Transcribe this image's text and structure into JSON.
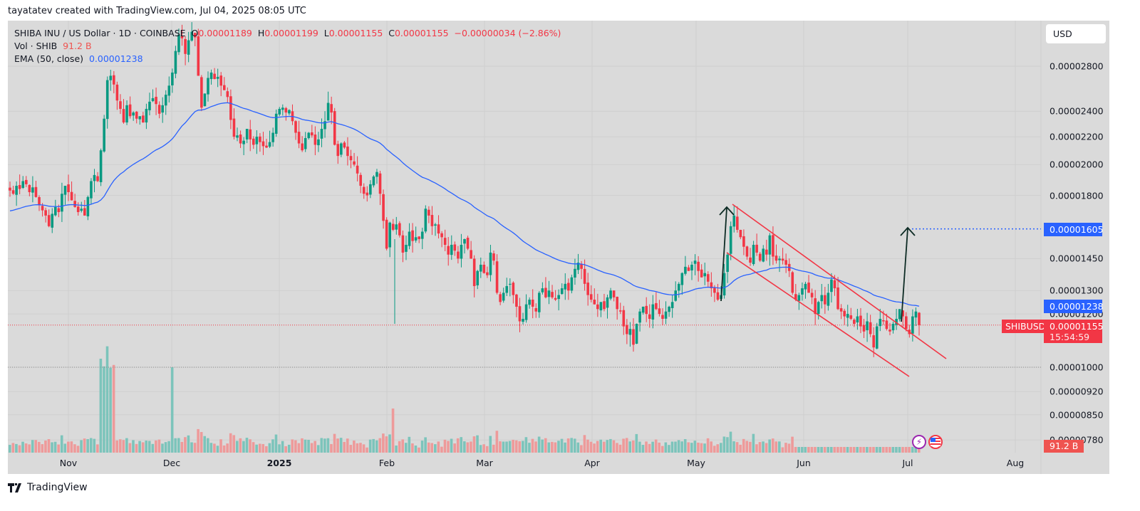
{
  "caption": "tayatatev created with TradingView.com, Jul 04, 2025 08:05 UTC",
  "legend": {
    "symbol": "SHIBA INU / US Dollar · 1D · COINBASE",
    "o_label": "O",
    "o_value": "0.00001189",
    "h_label": "H",
    "h_value": "0.00001199",
    "l_label": "L",
    "l_value": "0.00001155",
    "c_label": "C",
    "c_value": "0.00001155",
    "change": "−0.00000034 (−2.86%)",
    "vol_label": "Vol · SHIB",
    "vol_value": "91.2 B",
    "ema_label": "EMA (50, close)",
    "ema_value": "0.00001238"
  },
  "currency_button": "USD",
  "price_axis": {
    "ticks": [
      "0.00002800",
      "0.00002400",
      "0.00002200",
      "0.00002000",
      "0.00001800",
      "0.00001450",
      "0.00001300",
      "0.00001200",
      "0.00001000",
      "0.00000920",
      "0.00000850",
      "0.00000780"
    ],
    "target_tag": "0.00001605",
    "ema_tag": "0.00001238",
    "symbol_tag": "SHIBUSD",
    "last_price_tag": "0.00001155",
    "countdown": "15:54:59",
    "volume_tag": "91.2 B"
  },
  "time_axis": [
    "Nov",
    "Dec",
    "2025",
    "Feb",
    "Mar",
    "Apr",
    "May",
    "Jun",
    "Jul",
    "Aug"
  ],
  "brand": "TradingView",
  "colors": {
    "up": "#089981",
    "down": "#f23645",
    "ema": "#2962ff",
    "channel": "#f23645",
    "arrow": "#0d2b24",
    "vol_up": "#7cc4bb",
    "vol_down": "#ee9a9a"
  },
  "chart_data": {
    "type": "candlestick",
    "title": "SHIBA INU / US Dollar · 1D · COINBASE",
    "scale": "log",
    "y_unit": "USD (×1e-6)",
    "ylim": [
      7.8,
      30.0
    ],
    "x_start": "2024-10-13",
    "x_end": "2025-07-04",
    "series_ema": "EMA (50, close)",
    "closes": [
      18.3,
      18.1,
      18.6,
      18.4,
      18.9,
      18.7,
      18.2,
      18.5,
      17.9,
      17.4,
      17.1,
      16.8,
      16.2,
      16.9,
      17.3,
      17.0,
      18.1,
      18.6,
      18.2,
      17.7,
      17.3,
      17.0,
      17.2,
      16.8,
      17.9,
      18.9,
      19.3,
      18.9,
      21.0,
      23.4,
      26.7,
      27.1,
      26.3,
      24.9,
      24.2,
      23.1,
      24.5,
      23.6,
      23.9,
      23.4,
      23.6,
      23.1,
      24.2,
      24.8,
      25.1,
      24.6,
      23.8,
      24.5,
      25.4,
      26.2,
      27.4,
      29.5,
      31.2,
      30.8,
      29.2,
      30.6,
      31.5,
      30.9,
      27.1,
      24.3,
      25.5,
      26.9,
      27.4,
      26.8,
      27.0,
      26.2,
      25.8,
      25.2,
      23.3,
      22.0,
      22.1,
      21.5,
      21.7,
      22.6,
      21.8,
      21.4,
      22.0,
      21.6,
      21.3,
      21.2,
      21.6,
      22.3,
      23.8,
      24.2,
      24.3,
      23.9,
      24.1,
      23.2,
      22.3,
      21.5,
      21.0,
      21.9,
      22.3,
      22.1,
      21.4,
      21.8,
      22.6,
      23.2,
      24.7,
      23.9,
      21.4,
      20.6,
      21.5,
      21.2,
      20.6,
      20.3,
      20.0,
      19.4,
      18.6,
      18.1,
      18.0,
      18.7,
      19.2,
      19.5,
      18.1,
      16.5,
      15.0,
      16.4,
      16.0,
      16.3,
      15.7,
      14.8,
      15.2,
      15.9,
      15.4,
      15.6,
      15.5,
      15.9,
      17.2,
      16.8,
      16.2,
      16.3,
      15.8,
      15.6,
      15.2,
      14.7,
      15.2,
      14.9,
      14.5,
      15.2,
      15.5,
      15.0,
      14.5,
      13.2,
      13.9,
      14.2,
      13.8,
      13.7,
      14.8,
      14.4,
      12.9,
      12.5,
      12.9,
      13.2,
      13.3,
      12.8,
      12.3,
      11.7,
      11.8,
      12.4,
      12.6,
      12.3,
      12.1,
      12.9,
      13.1,
      12.7,
      13.0,
      12.7,
      12.6,
      12.8,
      13.1,
      13.3,
      13.0,
      13.6,
      14.0,
      14.3,
      14.0,
      13.3,
      12.8,
      12.6,
      12.4,
      12.2,
      12.5,
      12.2,
      12.7,
      13.0,
      12.7,
      12.2,
      12.1,
      11.5,
      11.2,
      11.4,
      10.8,
      11.6,
      12.1,
      12.3,
      12.0,
      11.8,
      12.4,
      12.2,
      12.0,
      11.8,
      12.1,
      12.3,
      12.5,
      13.0,
      13.3,
      13.8,
      14.1,
      13.9,
      14.2,
      14.4,
      13.9,
      13.6,
      13.8,
      13.4,
      13.1,
      12.9,
      12.6,
      12.8,
      13.8,
      14.7,
      16.2,
      16.8,
      16.0,
      15.6,
      15.1,
      14.6,
      14.3,
      15.2,
      14.8,
      14.4,
      15.0,
      14.7,
      15.7,
      14.6,
      14.4,
      14.5,
      14.4,
      14.2,
      13.9,
      12.9,
      12.6,
      12.8,
      13.1,
      13.3,
      12.9,
      12.7,
      12.0,
      12.5,
      12.8,
      12.4,
      12.9,
      13.5,
      13.1,
      12.2,
      12.1,
      11.9,
      12.0,
      11.8,
      11.6,
      11.9,
      11.5,
      11.3,
      11.7,
      11.2,
      10.7,
      11.5,
      11.8,
      11.7,
      11.4,
      11.3,
      11.6,
      11.8,
      12.2,
      11.9,
      11.4,
      11.2,
      11.9,
      12.1,
      11.55
    ],
    "volume_relative": "spikes mid-Nov (~40% of pane) and early Dec (~37%); low late spring",
    "annotations": [
      {
        "type": "descending channel",
        "color": "#f23645",
        "from": "2025-05-12",
        "to": "2025-07-10"
      },
      {
        "type": "arrow",
        "label": "flagpole",
        "from_price": 12.6,
        "to_price": 17.3,
        "date": "2025-05-09"
      },
      {
        "type": "arrow",
        "label": "projected target",
        "from_price": 12.2,
        "to_price": 16.05,
        "date": "2025-06-30"
      },
      {
        "type": "horizontal dotted line",
        "price": 16.05,
        "color": "#2962ff"
      },
      {
        "type": "horizontal dotted line",
        "price": 11.55,
        "color": "#f23645",
        "label": "last price"
      },
      {
        "type": "horizontal dotted line",
        "price": 10.0,
        "color": "#787b86"
      }
    ]
  }
}
